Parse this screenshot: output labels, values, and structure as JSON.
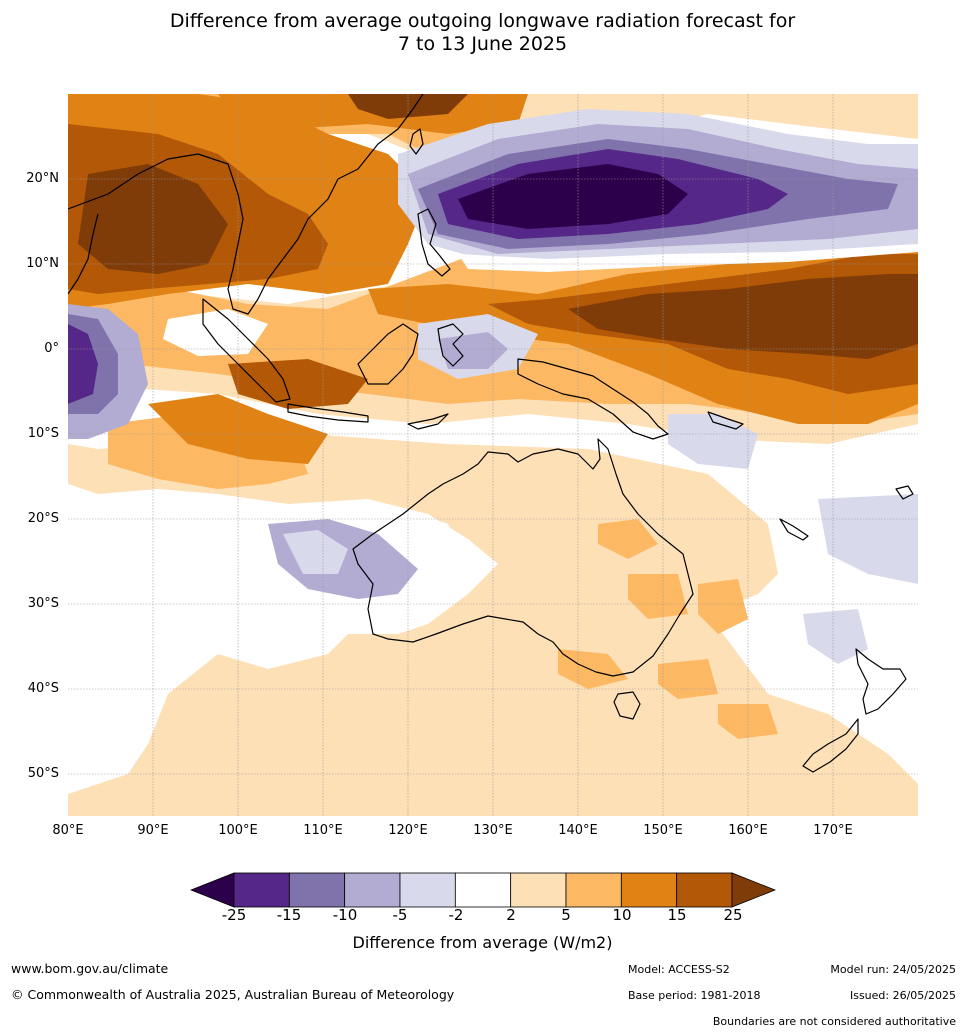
{
  "title_line1": "Difference from average outgoing longwave radiation forecast for",
  "title_line2": "7 to 13 June 2025",
  "lat_labels": [
    "20°N",
    "10°N",
    "0°",
    "10°S",
    "20°S",
    "30°S",
    "40°S",
    "50°S"
  ],
  "lon_labels": [
    "80°E",
    "90°E",
    "100°E",
    "110°E",
    "120°E",
    "130°E",
    "140°E",
    "150°E",
    "160°E",
    "170°E"
  ],
  "colorbar": {
    "ticks": [
      "-25",
      "-15",
      "-10",
      "-5",
      "-2",
      "2",
      "5",
      "10",
      "15",
      "25"
    ],
    "colors": [
      "#2d004b",
      "#542788",
      "#8073ac",
      "#b2abd2",
      "#d8daeb",
      "#ffffff",
      "#fee0b6",
      "#fdb863",
      "#e08214",
      "#b35806",
      "#7f3b08"
    ],
    "label": "Difference from average (W/m2)"
  },
  "footer": {
    "website": "www.bom.gov.au/climate",
    "copyright": "© Commonwealth of Australia 2025, Australian Bureau of Meteorology",
    "model": "Model: ACCESS-S2",
    "base_period": "Base period: 1981-2018",
    "model_run": "Model run: 24/05/2025",
    "issued": "Issued: 26/05/2025",
    "disclaimer": "Boundaries are not considered authoritative"
  }
}
